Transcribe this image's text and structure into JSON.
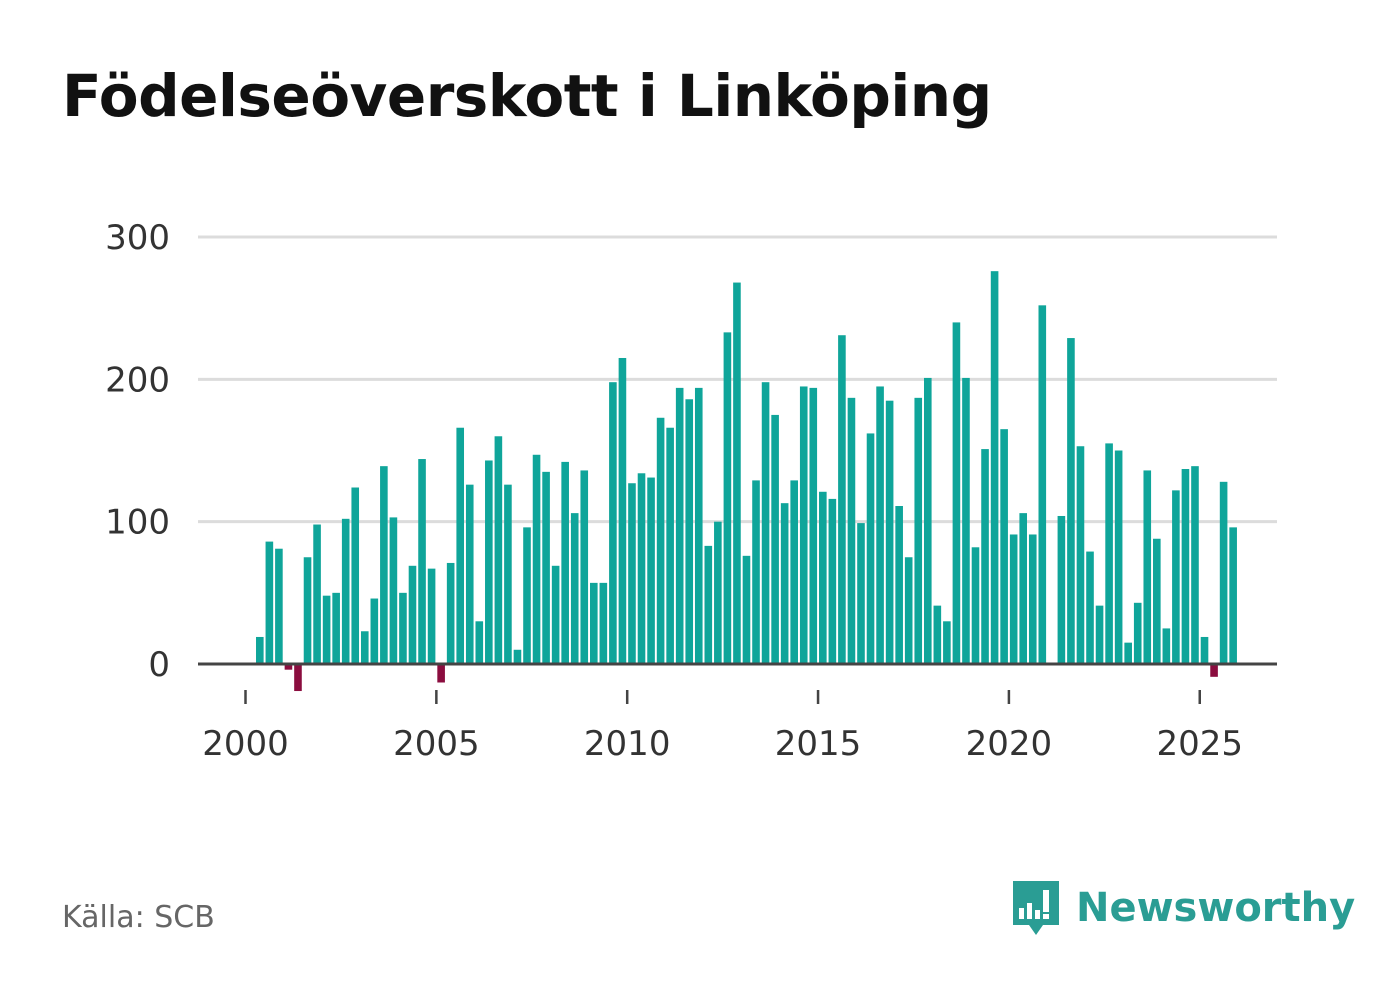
{
  "header": {
    "title": "Födelseöverskott i Linköping"
  },
  "footer": {
    "source": "Källa: SCB",
    "brand": "Newsworthy",
    "brand_icon": "bar-chart-speech-bubble-icon"
  },
  "colors": {
    "positive": "#0fa59a",
    "negative": "#8b0d3f",
    "grid": "#dcdcdc",
    "baseline": "#444444",
    "brand": "#2a9d94"
  },
  "chart_data": {
    "type": "bar",
    "title": "Födelseöverskott i Linköping",
    "xlabel": "",
    "ylabel": "",
    "frequency": "quarterly",
    "x_start": 2000,
    "ylim": [
      -20,
      300
    ],
    "y_ticks": [
      0,
      100,
      200,
      300
    ],
    "x_ticks": [
      2000,
      2005,
      2010,
      2015,
      2020,
      2025
    ],
    "grid": true,
    "values": [
      0,
      19,
      86,
      81,
      -4,
      -19,
      75,
      98,
      48,
      50,
      102,
      124,
      23,
      46,
      139,
      103,
      50,
      69,
      144,
      67,
      -13,
      71,
      166,
      126,
      30,
      143,
      160,
      126,
      10,
      96,
      147,
      135,
      69,
      142,
      106,
      136,
      57,
      57,
      198,
      215,
      127,
      134,
      131,
      173,
      166,
      194,
      186,
      194,
      83,
      100,
      233,
      268,
      76,
      129,
      198,
      175,
      113,
      129,
      195,
      194,
      121,
      116,
      231,
      187,
      99,
      162,
      195,
      185,
      111,
      75,
      187,
      201,
      41,
      30,
      240,
      201,
      82,
      151,
      276,
      165,
      91,
      106,
      91,
      252,
      0,
      104,
      229,
      153,
      79,
      41,
      155,
      150,
      15,
      43,
      136,
      88,
      25,
      122,
      137,
      139,
      19,
      -9,
      128,
      96
    ]
  }
}
